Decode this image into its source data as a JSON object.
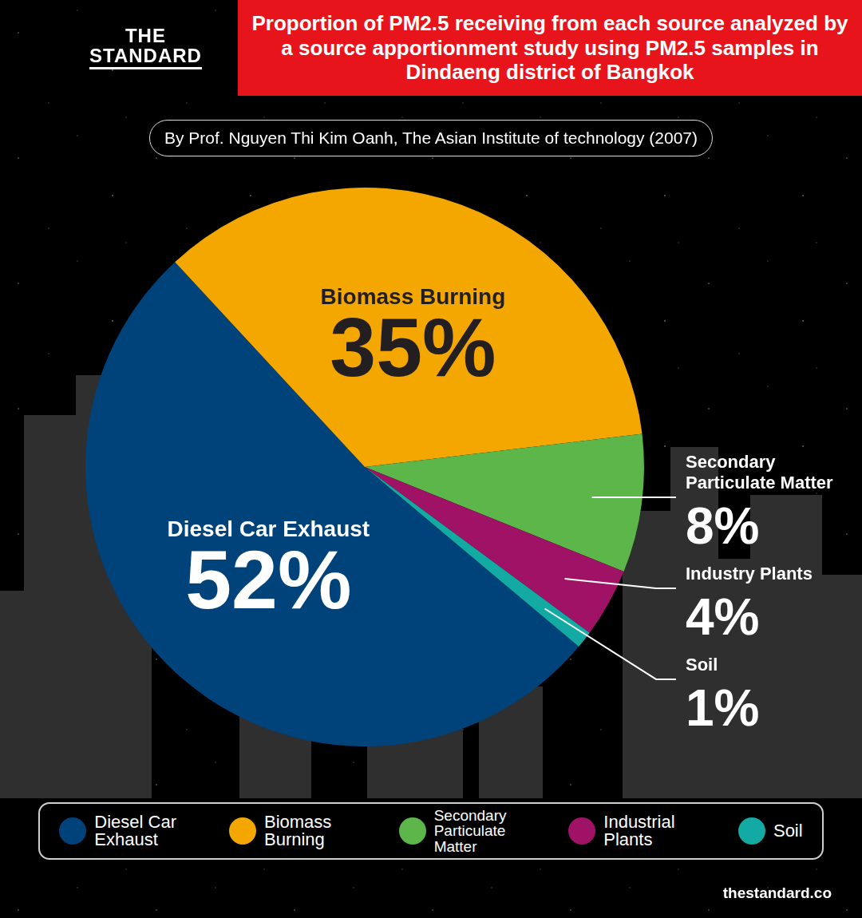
{
  "logo": [
    "THE",
    "STANDARD"
  ],
  "footer": "thestandard.co",
  "chart_data": {
    "type": "pie",
    "title": "Proportion of PM2.5 receiving from each source analyzed by a source apportionment study using PM2.5 samples in Dindaeng district of Bangkok",
    "subtitle": "By Prof. Nguyen Thi Kim Oanh, The Asian Institute of technology (2007)",
    "categories": [
      "Diesel Car Exhaust",
      "Biomass Burning",
      "Secondary Particulate Matter",
      "Industrial Plants",
      "Soil"
    ],
    "slice_labels": [
      "Diesel Car Exhaust",
      "Biomass Burning",
      "Secondary Particulate Matter",
      "Industry Plants",
      "Soil"
    ],
    "values": [
      52,
      35,
      8,
      4,
      1
    ],
    "value_labels": [
      "52%",
      "35%",
      "8%",
      "4%",
      "1%"
    ],
    "colors": [
      "#00427a",
      "#f4a700",
      "#5db649",
      "#a01265",
      "#12aaa3"
    ],
    "data_labels": true,
    "legend": "bottom"
  }
}
